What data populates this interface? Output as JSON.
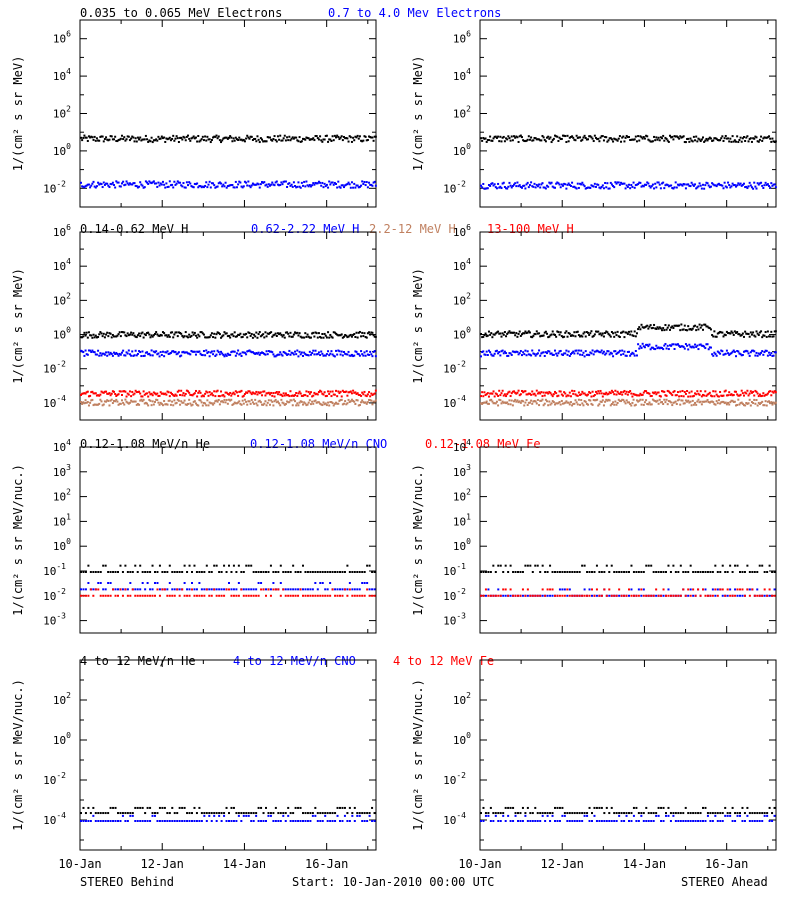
{
  "footer": {
    "left": "STEREO Behind",
    "center": "Start: 10-Jan-2010 00:00 UTC",
    "right": "STEREO Ahead"
  },
  "x_tick_labels": [
    "10-Jan",
    "12-Jan",
    "14-Jan",
    "16-Jan"
  ],
  "colors": {
    "black": "#000000",
    "blue": "#0000ff",
    "tan": "#c08060",
    "red": "#ff0000"
  },
  "chart_data": [
    {
      "type": "scatter",
      "title_parts": [
        {
          "text": "0.035 to 0.065 MeV Electrons",
          "color": "#000000"
        },
        {
          "text": "0.7 to 4.0 Mev Electrons",
          "color": "#0000ff"
        }
      ],
      "ylabel": "1/(cm² s sr MeV)",
      "yscale": "log",
      "ylim_exp": [
        -3,
        7
      ],
      "ytick_exps": [
        -2,
        0,
        2,
        4,
        6
      ],
      "xlim_days": [
        0,
        7.2
      ],
      "series": [
        {
          "color": "#000000",
          "behind_level": 5,
          "ahead_level": 5
        },
        {
          "color": "#0000ff",
          "behind_level": 0.018,
          "ahead_level": 0.016
        }
      ]
    },
    {
      "type": "scatter",
      "title_parts": [
        {
          "text": "0.14-0.62 MeV H",
          "color": "#000000"
        },
        {
          "text": "0.62-2.22 MeV H",
          "color": "#0000ff"
        },
        {
          "text": "2.2-12 MeV H",
          "color": "#c08060"
        },
        {
          "text": "13-100 MeV H",
          "color": "#ff0000"
        }
      ],
      "ylabel": "1/(cm² s sr MeV)",
      "yscale": "log",
      "ylim_exp": [
        -5,
        6
      ],
      "ytick_exps": [
        -4,
        -2,
        0,
        2,
        4,
        6
      ],
      "xlim_days": [
        0,
        7.2
      ],
      "series": [
        {
          "color": "#000000",
          "behind_level": 1.1,
          "ahead_level": 1.2
        },
        {
          "color": "#0000ff",
          "behind_level": 0.09,
          "ahead_level": 0.09
        },
        {
          "color": "#c08060",
          "behind_level": 0.00012,
          "ahead_level": 0.00012
        },
        {
          "color": "#ff0000",
          "behind_level": 0.0004,
          "ahead_level": 0.0004
        }
      ]
    },
    {
      "type": "scatter",
      "title_parts": [
        {
          "text": "0.12-1.08 MeV/n He",
          "color": "#000000"
        },
        {
          "text": "0.12-1.08 MeV/n CNO",
          "color": "#0000ff"
        },
        {
          "text": "0.12-1.08 MeV Fe",
          "color": "#ff0000"
        }
      ],
      "ylabel": "1/(cm² s sr MeV/nuc.)",
      "yscale": "log",
      "ylim_exp": [
        -3.5,
        4
      ],
      "ytick_exps": [
        -3,
        -2,
        -1,
        0,
        1,
        2,
        3,
        4
      ],
      "xlim_days": [
        0,
        7.2
      ],
      "series": [
        {
          "color": "#000000",
          "behind_level": 0.1,
          "ahead_level": 0.1
        },
        {
          "color": "#0000ff",
          "behind_level": 0.02,
          "ahead_level": 0.011
        },
        {
          "color": "#ff0000",
          "behind_level": 0.011,
          "ahead_level": 0.011
        }
      ]
    },
    {
      "type": "scatter",
      "title_parts": [
        {
          "text": "4 to 12 MeV/n He",
          "color": "#000000"
        },
        {
          "text": "4 to 12 MeV/n CNO",
          "color": "#0000ff"
        },
        {
          "text": "4 to 12 MeV Fe",
          "color": "#ff0000"
        }
      ],
      "ylabel": "1/(cm² s sr MeV/nuc.)",
      "yscale": "log",
      "ylim_exp": [
        -5.5,
        4
      ],
      "ytick_exps": [
        -4,
        -2,
        0,
        2
      ],
      "xlim_days": [
        0,
        7.2
      ],
      "series": [
        {
          "color": "#000000",
          "behind_level": 0.00025,
          "ahead_level": 0.00025
        },
        {
          "color": "#0000ff",
          "behind_level": 0.0001,
          "ahead_level": 0.0001
        }
      ]
    }
  ]
}
